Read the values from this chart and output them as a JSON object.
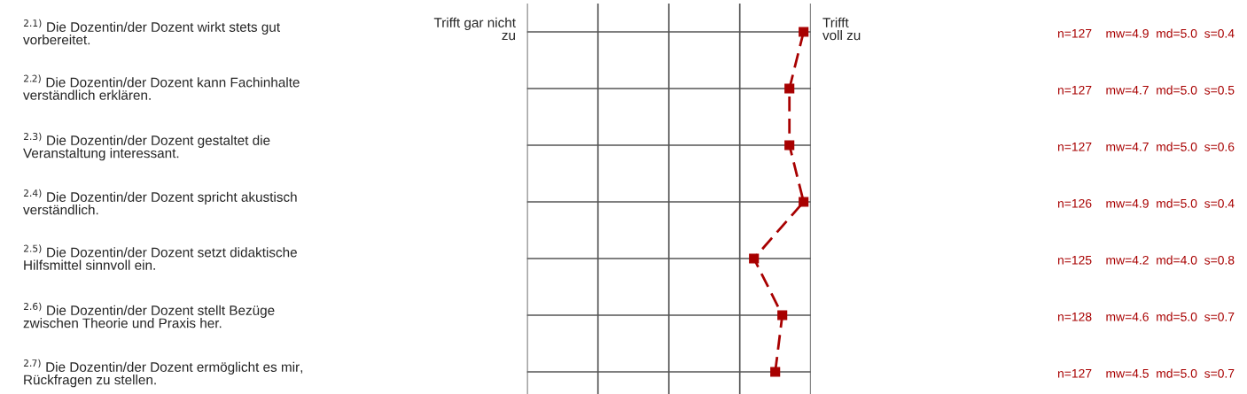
{
  "chart_data": {
    "type": "line",
    "orientation": "horizontal",
    "categories": [
      "$^{2.1)}$ Die Dozentin/der Dozent wirkt stets gut\nvorbereitet.",
      "$^{2.2)}$ Die Dozentin/der Dozent kann Fachinhalte\nverständlich erklären.",
      "$^{2.3)}$ Die Dozentin/der Dozent gestaltet die\nVeranstaltung interessant.",
      "$^{2.4)}$ Die Dozentin/der Dozent spricht akustisch\nverständlich.",
      "$^{2.5)}$ Die Dozentin/der Dozent setzt didaktische\nHilfsmittel sinnvoll ein.",
      "$^{2.6)}$ Die Dozentin/der Dozent stellt Bezüge\nzwischen Theorie und Praxis her.",
      "$^{2.7)}$ Die Dozentin/der Dozent ermöglicht es mir,\nRückfragen zu stellen."
    ],
    "series": [
      {
        "color": "#a80000",
        "values": [
          4.9,
          4.7,
          4.7,
          4.9,
          4.2,
          4.6,
          4.5
        ],
        "value_labels": [
          "n=127    mw=4.9  md=5.0  s=0.4",
          "n=127    mw=4.7  md=5.0  s=0.5",
          "n=127    mw=4.7  md=5.0  s=0.6",
          "n=126    mw=4.9  md=5.0  s=0.4",
          "n=125    mw=4.2  md=4.0  s=0.8",
          "n=128    mw=4.6  md=5.0  s=0.7",
          "n=127    mw=4.5  md=5.0  s=0.7"
        ]
      }
    ],
    "xlim": [
      1,
      5
    ],
    "marker": "square",
    "line_style": "dashed",
    "grid": true,
    "annotations": [
      "Trifft gar nicht\nzu",
      "Trifft\nvoll zu"
    ]
  }
}
